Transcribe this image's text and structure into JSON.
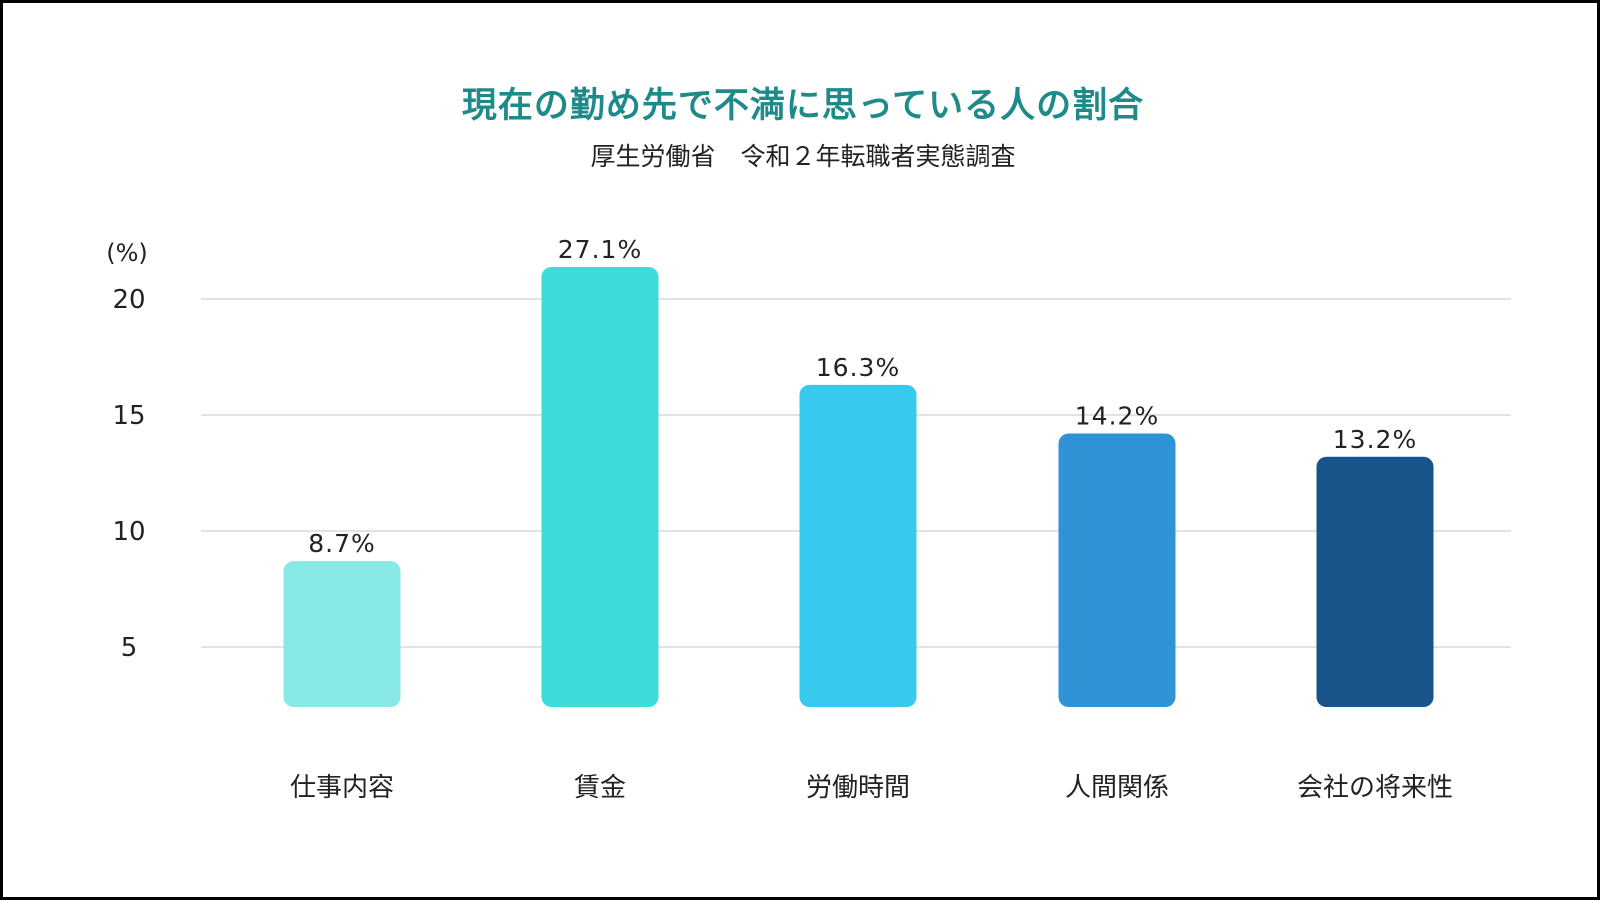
{
  "chart_data": {
    "type": "bar",
    "title": "現在の勤め先で不満に思っている人の割合",
    "subtitle": "厚生労働省　令和２年転職者実態調査",
    "ylabel": "(%)",
    "ylim": [
      0,
      20
    ],
    "yticks": [
      5,
      10,
      15,
      20
    ],
    "grid": true,
    "categories": [
      "仕事内容",
      "賃金",
      "労働時間",
      "人間関係",
      "会社の将来性"
    ],
    "values": [
      8.7,
      27.1,
      16.3,
      14.2,
      13.2
    ],
    "value_labels": [
      "8.7%",
      "27.1%",
      "16.3%",
      "14.2%",
      "13.2%"
    ],
    "colors": [
      "#87e8e6",
      "#3fdbd8",
      "#38c9ee",
      "#2f93d6",
      "#16548a"
    ]
  },
  "colors": {
    "title": "#1f8a8a",
    "gridline": "#d9d9d9",
    "frame": "#000000"
  }
}
